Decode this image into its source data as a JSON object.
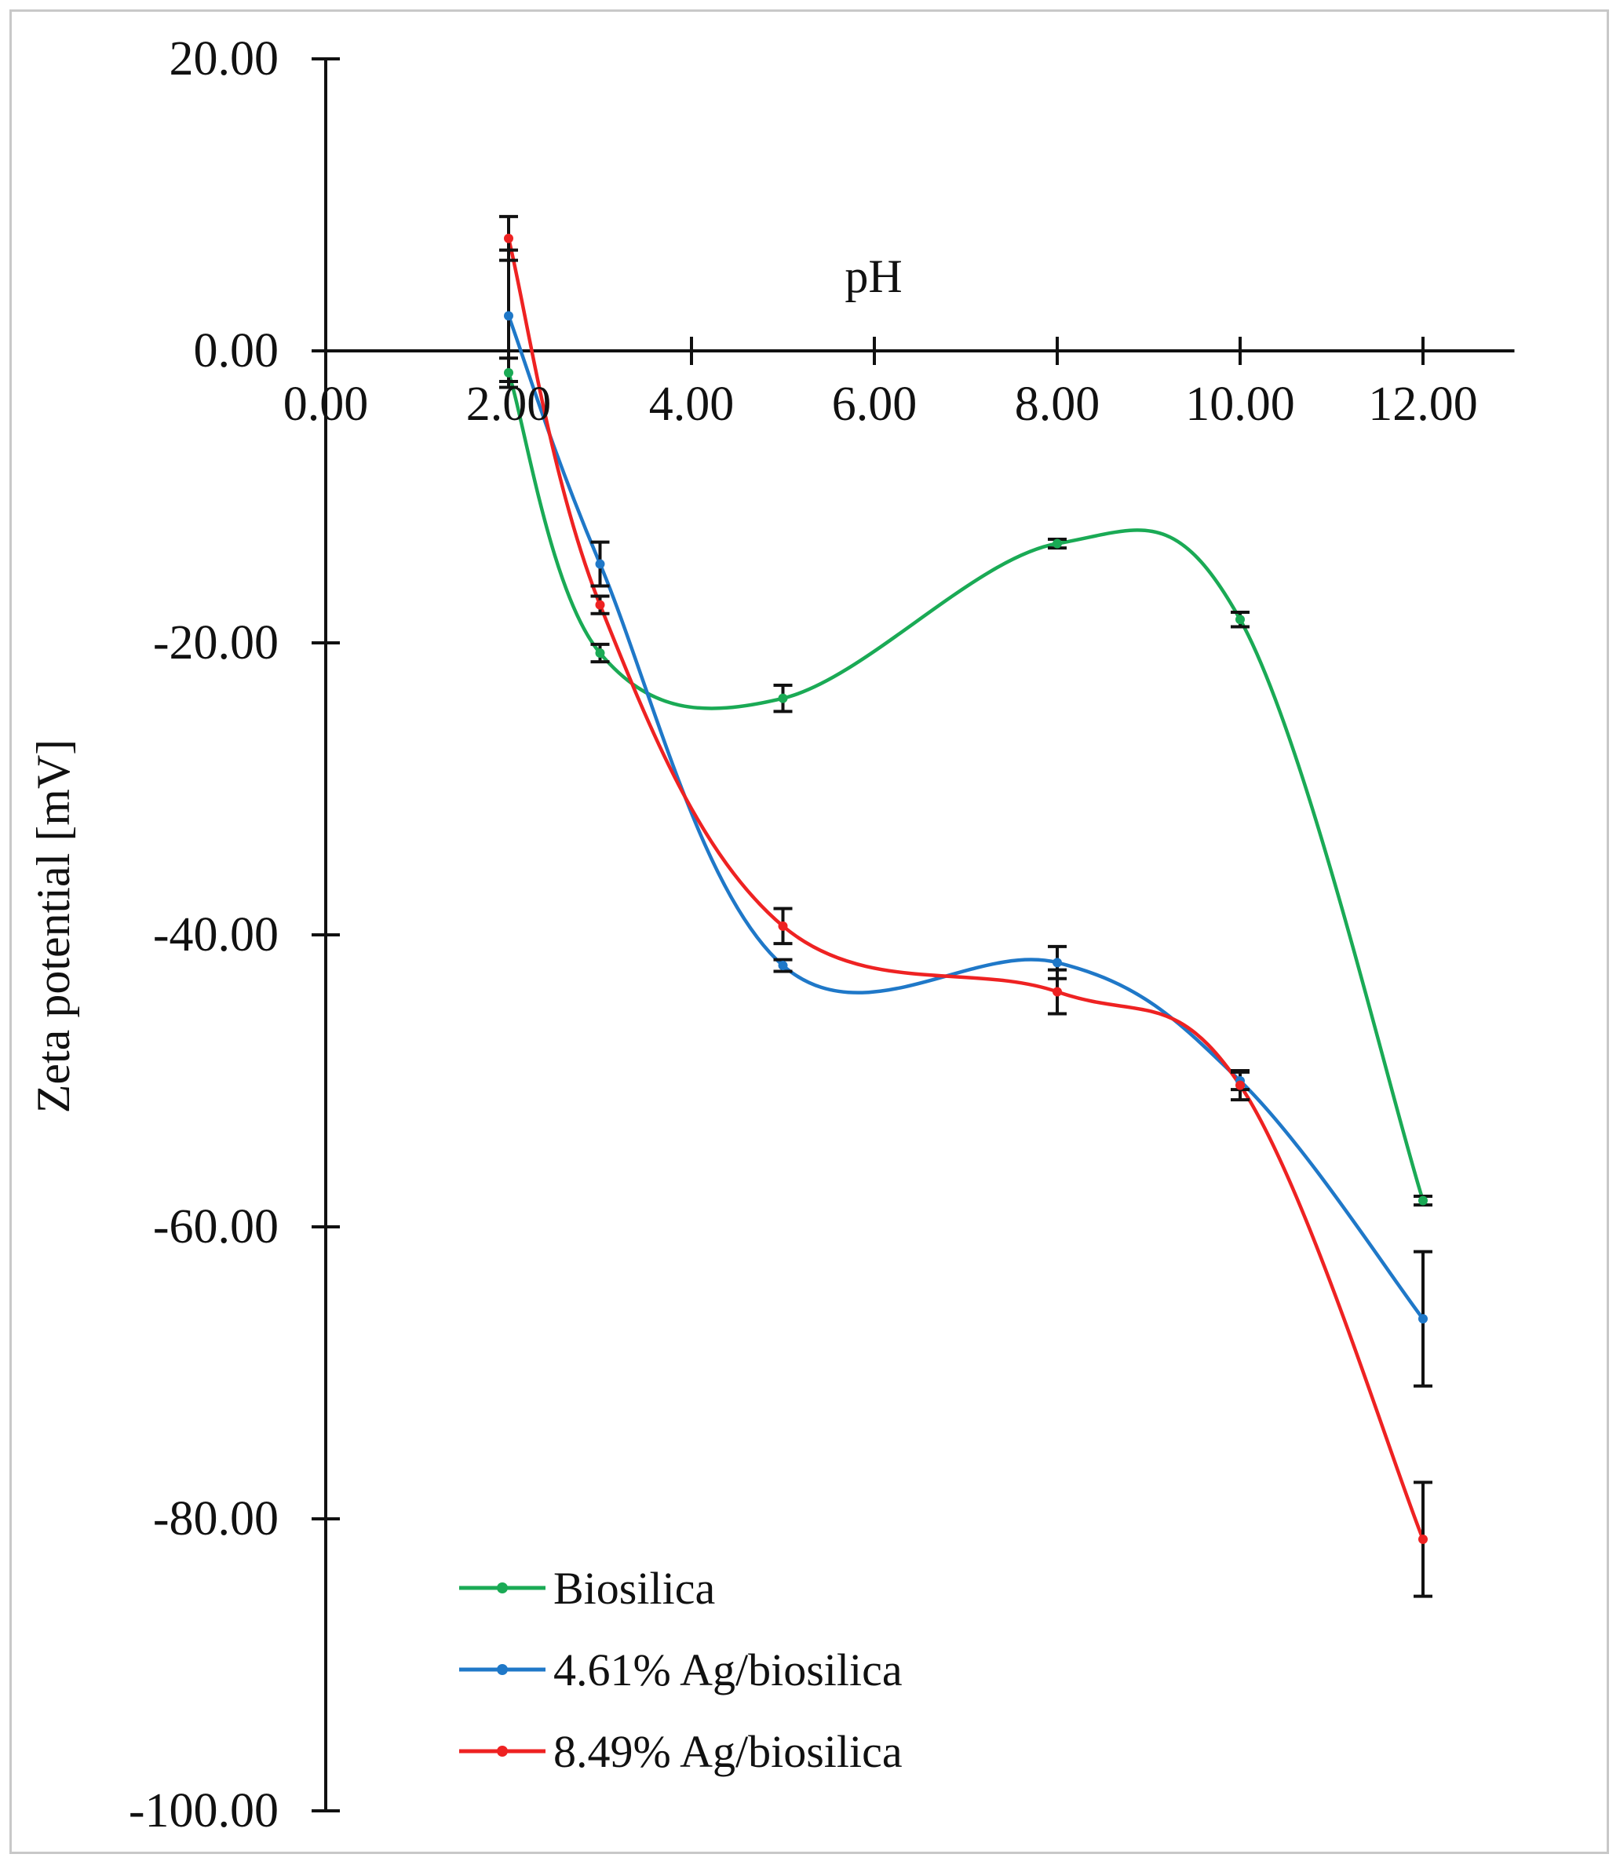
{
  "chart_data": {
    "type": "line",
    "title": "",
    "xlabel": "pH",
    "ylabel": "Zeta potential [mV]",
    "xlim": [
      0,
      13
    ],
    "ylim": [
      -100,
      20
    ],
    "x_ticks": [
      {
        "value": 0,
        "label": "0.00"
      },
      {
        "value": 2,
        "label": "2.00"
      },
      {
        "value": 4,
        "label": "4.00"
      },
      {
        "value": 6,
        "label": "6.00"
      },
      {
        "value": 8,
        "label": "8.00"
      },
      {
        "value": 10,
        "label": "10.00"
      },
      {
        "value": 12,
        "label": "12.00"
      }
    ],
    "y_ticks": [
      {
        "value": 20,
        "label": "20.00"
      },
      {
        "value": 0,
        "label": "0.00"
      },
      {
        "value": -20,
        "label": "-20.00"
      },
      {
        "value": -40,
        "label": "-40.00"
      },
      {
        "value": -60,
        "label": "-60.00"
      },
      {
        "value": -80,
        "label": "-80.00"
      },
      {
        "value": -100,
        "label": "-100.00"
      }
    ],
    "grid": false,
    "legend_position": "bottom-left",
    "series": [
      {
        "name": "Biosilica",
        "color": "#1aaa55",
        "x": [
          2,
          3,
          5,
          8,
          10,
          12
        ],
        "y": [
          -1.5,
          -20.7,
          -23.8,
          -13.2,
          -18.4,
          -58.2
        ],
        "err": [
          1.0,
          0.6,
          0.9,
          0.3,
          0.5,
          0.3
        ]
      },
      {
        "name": "4.61% Ag/biosilica",
        "color": "#1f78c8",
        "x": [
          2,
          3,
          5,
          8,
          10,
          12
        ],
        "y": [
          2.4,
          -14.6,
          -42.1,
          -41.9,
          -50.0,
          -66.3
        ],
        "err": [
          4.5,
          1.5,
          0.4,
          1.1,
          0.6,
          4.6
        ]
      },
      {
        "name": "8.49% Ag/biosilica",
        "color": "#ee2222",
        "x": [
          2,
          3,
          5,
          8,
          10,
          12
        ],
        "y": [
          7.7,
          -17.4,
          -39.4,
          -43.9,
          -50.3,
          -81.4
        ],
        "err": [
          1.5,
          0.6,
          1.2,
          1.5,
          1.0,
          3.9
        ]
      }
    ]
  }
}
